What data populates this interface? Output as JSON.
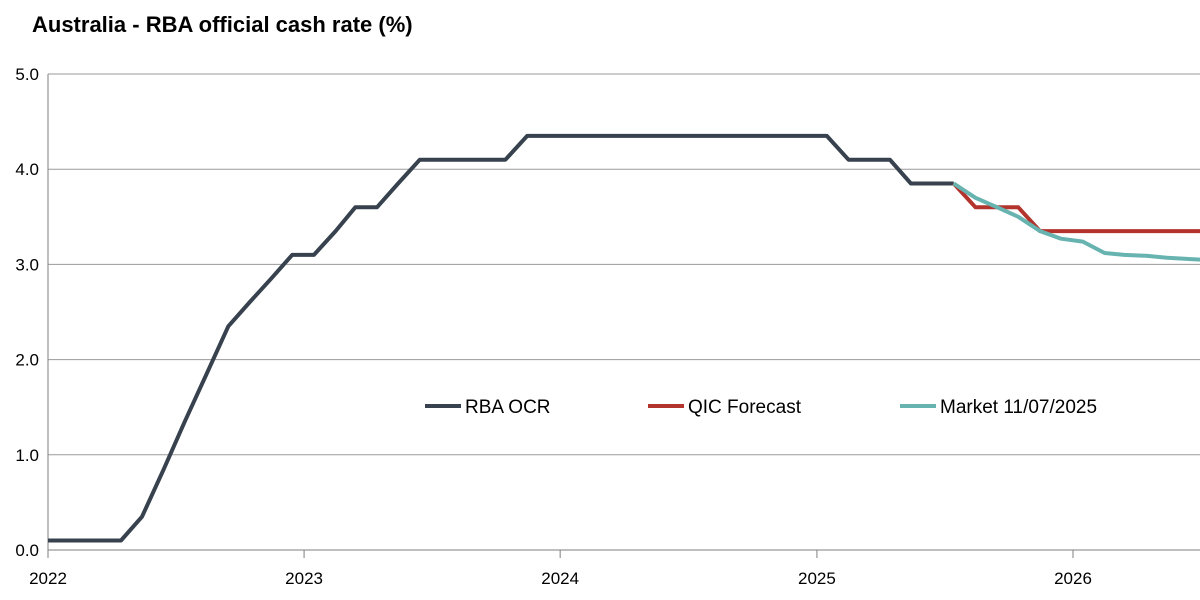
{
  "chart_data": {
    "type": "line",
    "title": "Australia - RBA official cash rate (%)",
    "xlabel": "",
    "ylabel": "",
    "x_ticks": [
      "2022",
      "2023",
      "2024",
      "2025",
      "2026"
    ],
    "x_range": [
      "2022-01-01",
      "2026-07-01"
    ],
    "y_ticks": [
      "0.0",
      "1.0",
      "2.0",
      "3.0",
      "4.0",
      "5.0"
    ],
    "ylim": [
      0,
      5
    ],
    "grid": "horizontal",
    "legend_position": "center-right",
    "series": [
      {
        "name": "RBA OCR",
        "color": "#37424e",
        "points": [
          [
            "2022-01-01",
            0.1
          ],
          [
            "2022-04-15",
            0.1
          ],
          [
            "2022-05-15",
            0.35
          ],
          [
            "2022-06-15",
            0.85
          ],
          [
            "2022-07-15",
            1.35
          ],
          [
            "2022-08-15",
            1.85
          ],
          [
            "2022-09-15",
            2.35
          ],
          [
            "2022-10-15",
            2.6
          ],
          [
            "2022-11-15",
            2.85
          ],
          [
            "2022-12-15",
            3.1
          ],
          [
            "2023-01-15",
            3.1
          ],
          [
            "2023-02-15",
            3.35
          ],
          [
            "2023-03-15",
            3.6
          ],
          [
            "2023-04-15",
            3.6
          ],
          [
            "2023-05-15",
            3.85
          ],
          [
            "2023-06-15",
            4.1
          ],
          [
            "2023-07-15",
            4.1
          ],
          [
            "2023-10-15",
            4.1
          ],
          [
            "2023-11-15",
            4.35
          ],
          [
            "2025-01-15",
            4.35
          ],
          [
            "2025-02-15",
            4.1
          ],
          [
            "2025-04-15",
            4.1
          ],
          [
            "2025-05-15",
            3.85
          ],
          [
            "2025-07-15",
            3.85
          ]
        ]
      },
      {
        "name": "QIC Forecast",
        "color": "#b3332d",
        "points": [
          [
            "2025-07-15",
            3.85
          ],
          [
            "2025-08-15",
            3.6
          ],
          [
            "2025-10-15",
            3.6
          ],
          [
            "2025-11-15",
            3.35
          ],
          [
            "2026-07-01",
            3.35
          ]
        ]
      },
      {
        "name": "Market 11/07/2025",
        "color": "#67b3b0",
        "points": [
          [
            "2025-07-15",
            3.85
          ],
          [
            "2025-08-15",
            3.7
          ],
          [
            "2025-09-15",
            3.6
          ],
          [
            "2025-10-15",
            3.5
          ],
          [
            "2025-11-15",
            3.35
          ],
          [
            "2025-12-15",
            3.27
          ],
          [
            "2026-01-15",
            3.24
          ],
          [
            "2026-02-15",
            3.12
          ],
          [
            "2026-03-15",
            3.1
          ],
          [
            "2026-04-15",
            3.09
          ],
          [
            "2026-05-15",
            3.07
          ],
          [
            "2026-07-01",
            3.05
          ]
        ]
      }
    ]
  }
}
